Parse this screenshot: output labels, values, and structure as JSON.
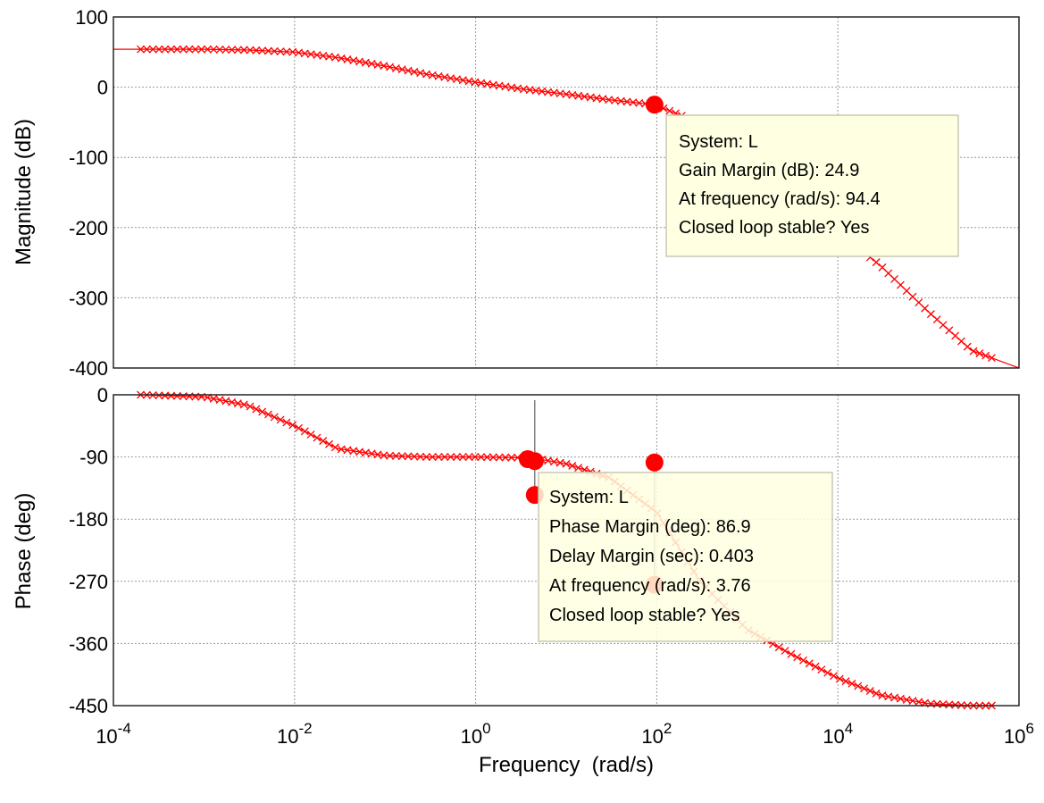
{
  "chart_data": {
    "type": "line",
    "title": "",
    "x_scale": "log",
    "x_label": "Frequency  (rad/s)",
    "x_range": [
      0.0001,
      1000000
    ],
    "x_ticks": [
      {
        "value": 0.0001,
        "base": "10",
        "exp": "-4"
      },
      {
        "value": 0.01,
        "base": "10",
        "exp": "-2"
      },
      {
        "value": 1,
        "base": "10",
        "exp": "0"
      },
      {
        "value": 100,
        "base": "10",
        "exp": "2"
      },
      {
        "value": 10000,
        "base": "10",
        "exp": "4"
      },
      {
        "value": 1000000,
        "base": "10",
        "exp": "6"
      }
    ],
    "grid": true,
    "line_color": "#ff0000",
    "marker": "x",
    "magnitude": {
      "y_label": "Magnitude (dB)",
      "y_range": [
        -400,
        100
      ],
      "y_ticks": [
        "100",
        "0",
        "-100",
        "-200",
        "-300",
        "-400"
      ],
      "series": {
        "freq": [
          0.0001,
          0.001,
          0.003,
          0.01,
          0.03,
          0.1,
          0.3,
          1,
          3,
          10,
          30,
          94.4,
          200,
          500,
          1000,
          3000,
          10000,
          30000,
          100000,
          300000,
          1000000
        ],
        "db": [
          54,
          54,
          53,
          50,
          42,
          30,
          18,
          7,
          -2,
          -10,
          -18,
          -24.9,
          -42,
          -70,
          -100,
          -150,
          -205,
          -255,
          -320,
          -375,
          -400
        ]
      }
    },
    "phase": {
      "y_label": "Phase (deg)",
      "y_range": [
        -450,
        0
      ],
      "y_ticks": [
        "0",
        "-90",
        "-180",
        "-270",
        "-360",
        "-450"
      ],
      "series": {
        "freq": [
          0.0002,
          0.001,
          0.003,
          0.01,
          0.03,
          0.1,
          0.3,
          1,
          3,
          5,
          10,
          30,
          100,
          300,
          1000,
          3000,
          10000,
          30000,
          100000,
          300000,
          500000
        ],
        "deg": [
          0,
          -3,
          -15,
          -45,
          -78,
          -88,
          -90,
          -90,
          -91,
          -93,
          -100,
          -120,
          -170,
          -270,
          -340,
          -375,
          -410,
          -435,
          -447,
          -450,
          -450
        ]
      }
    },
    "margin_markers": {
      "gain_crossover": {
        "freq": 94.4,
        "db": -24.9
      },
      "phase_points": [
        {
          "freq": 3.76,
          "deg": -93.1
        },
        {
          "freq": 4.5,
          "deg": -96
        },
        {
          "freq": 4.5,
          "deg": -145
        },
        {
          "freq": 94.4,
          "deg": -98
        },
        {
          "freq": 94.4,
          "deg": -275
        }
      ]
    },
    "annotations": {
      "gain_tip": [
        "System: L",
        "Gain Margin (dB): 24.9",
        "At frequency (rad/s): 94.4",
        "Closed loop stable? Yes"
      ],
      "phase_tip": [
        "System: L",
        "Phase Margin (deg): 86.9",
        "Delay Margin (sec): 0.403",
        "At frequency (rad/s): 3.76",
        "Closed loop stable? Yes"
      ]
    }
  }
}
